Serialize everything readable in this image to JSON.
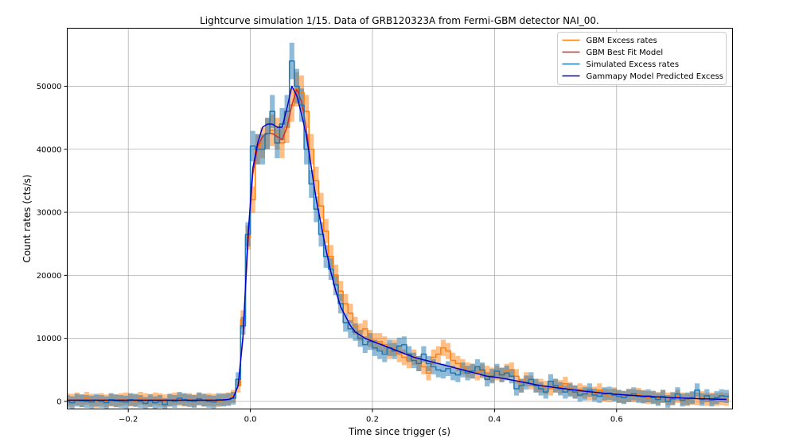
{
  "chart_data": {
    "type": "line",
    "title": "Lightcurve simulation 1/15. Data of GRB120323A from Fermi-GBM detector NAI_00.",
    "xlabel": "Time since trigger (s)",
    "ylabel": "Count rates (cts/s)",
    "xlim": [
      -0.3,
      0.79
    ],
    "ylim": [
      -1200,
      59200
    ],
    "xticks": [
      -0.2,
      0.0,
      0.2,
      0.4,
      0.6
    ],
    "xtick_labels": [
      "−0.2",
      "0.0",
      "0.2",
      "0.4",
      "0.6"
    ],
    "yticks": [
      0,
      10000,
      20000,
      30000,
      40000,
      50000
    ],
    "ytick_labels": [
      "0",
      "10000",
      "20000",
      "30000",
      "40000",
      "50000"
    ],
    "grid": true,
    "legend_position": "top-right",
    "bin_width": 0.008,
    "x": [
      -0.3,
      -0.292,
      -0.284,
      -0.276,
      -0.268,
      -0.26,
      -0.252,
      -0.244,
      -0.236,
      -0.228,
      -0.22,
      -0.212,
      -0.204,
      -0.196,
      -0.188,
      -0.18,
      -0.172,
      -0.164,
      -0.156,
      -0.148,
      -0.14,
      -0.132,
      -0.124,
      -0.116,
      -0.108,
      -0.1,
      -0.092,
      -0.084,
      -0.076,
      -0.068,
      -0.06,
      -0.052,
      -0.044,
      -0.036,
      -0.028,
      -0.02,
      -0.012,
      -0.004,
      0.004,
      0.012,
      0.02,
      0.028,
      0.036,
      0.044,
      0.052,
      0.06,
      0.068,
      0.076,
      0.084,
      0.092,
      0.1,
      0.108,
      0.116,
      0.124,
      0.132,
      0.14,
      0.148,
      0.156,
      0.164,
      0.172,
      0.18,
      0.188,
      0.196,
      0.204,
      0.212,
      0.22,
      0.228,
      0.236,
      0.244,
      0.252,
      0.26,
      0.268,
      0.276,
      0.284,
      0.292,
      0.3,
      0.308,
      0.316,
      0.324,
      0.332,
      0.34,
      0.348,
      0.356,
      0.364,
      0.372,
      0.38,
      0.388,
      0.396,
      0.404,
      0.412,
      0.42,
      0.428,
      0.436,
      0.444,
      0.452,
      0.46,
      0.468,
      0.476,
      0.484,
      0.492,
      0.5,
      0.508,
      0.516,
      0.524,
      0.532,
      0.54,
      0.548,
      0.556,
      0.564,
      0.572,
      0.58,
      0.588,
      0.596,
      0.604,
      0.612,
      0.62,
      0.628,
      0.636,
      0.644,
      0.652,
      0.66,
      0.668,
      0.676,
      0.684,
      0.692,
      0.7,
      0.708,
      0.716,
      0.724,
      0.732,
      0.74,
      0.748,
      0.756,
      0.764,
      0.772,
      0.78
    ],
    "series": [
      {
        "name": "GBM Excess rates",
        "style": "step",
        "color": "#ff7f0e",
        "values": [
          300,
          200,
          400,
          100,
          500,
          200,
          0,
          300,
          100,
          200,
          100,
          300,
          400,
          200,
          100,
          500,
          300,
          200,
          400,
          300,
          100,
          200,
          400,
          300,
          200,
          300,
          100,
          400,
          200,
          300,
          200,
          100,
          300,
          400,
          800,
          2500,
          13000,
          26000,
          32000,
          40000,
          41000,
          42500,
          43000,
          42500,
          41000,
          43500,
          47000,
          49500,
          49000,
          46000,
          40000,
          35000,
          31000,
          27000,
          23000,
          20000,
          17500,
          15500,
          14000,
          12000,
          11000,
          11500,
          10000,
          9500,
          9500,
          9000,
          8000,
          8500,
          7500,
          7000,
          6500,
          7000,
          6000,
          5500,
          4500,
          7000,
          7500,
          8500,
          8000,
          6500,
          6000,
          5500,
          5000,
          4800,
          4500,
          4800,
          4500,
          4200,
          4500,
          4200,
          4800,
          5000,
          4000,
          2500,
          3500,
          3000,
          2500,
          2500,
          2200,
          2000,
          2500,
          2300,
          2800,
          2000,
          1500,
          1800,
          1500,
          1200,
          1300,
          1800,
          1000,
          900,
          1200,
          800,
          700,
          1000,
          900,
          1100,
          800,
          600,
          700,
          500,
          800,
          400,
          500,
          800,
          400,
          300,
          500,
          400,
          600,
          300,
          400,
          300,
          400,
          300
        ]
      },
      {
        "name": "GBM Best Fit Model",
        "style": "line",
        "color": "#d62728",
        "values": [
          200,
          200,
          200,
          200,
          200,
          200,
          200,
          200,
          200,
          200,
          200,
          200,
          200,
          200,
          200,
          200,
          200,
          200,
          200,
          200,
          200,
          200,
          200,
          200,
          200,
          200,
          200,
          200,
          200,
          200,
          200,
          200,
          250,
          300,
          600,
          2500,
          10000,
          25000,
          36000,
          40500,
          42000,
          42500,
          42500,
          42000,
          41500,
          43500,
          47000,
          49500,
          47500,
          43000,
          37000,
          32000,
          28000,
          24000,
          20500,
          17500,
          15000,
          13500,
          12000,
          11000,
          10500,
          10000,
          9700,
          9400,
          9100,
          8800,
          8500,
          8200,
          7900,
          7600,
          7300,
          7000,
          6800,
          6600,
          6400,
          6200,
          6000,
          5800,
          5600,
          5400,
          5200,
          5000,
          4800,
          4600,
          4400,
          4200,
          4000,
          3900,
          3800,
          3700,
          3550,
          3400,
          3250,
          3100,
          2950,
          2800,
          2650,
          2500,
          2400,
          2300,
          2200,
          2100,
          2000,
          1900,
          1800,
          1700,
          1620,
          1540,
          1460,
          1380,
          1300,
          1230,
          1160,
          1100,
          1040,
          990,
          940,
          890,
          840,
          800,
          760,
          720,
          680,
          640,
          600,
          570,
          540,
          510,
          480,
          450,
          420,
          400,
          380,
          360,
          340,
          320
        ]
      },
      {
        "name": "Simulated Excess rates",
        "style": "step",
        "color": "#1f77b4",
        "values": [
          0,
          -200,
          200,
          100,
          0,
          -100,
          200,
          0,
          -200,
          300,
          100,
          0,
          -100,
          300,
          200,
          0,
          -300,
          100,
          -200,
          0,
          -500,
          200,
          0,
          500,
          300,
          100,
          0,
          400,
          200,
          0,
          -100,
          300,
          200,
          300,
          500,
          3500,
          12000,
          26500,
          40500,
          40000,
          40000,
          42500,
          46000,
          41000,
          44000,
          46000,
          54000,
          50000,
          47000,
          40000,
          34500,
          30500,
          26500,
          23000,
          21000,
          18500,
          15500,
          12500,
          11500,
          11000,
          10000,
          9000,
          9500,
          8500,
          8000,
          7500,
          8500,
          8000,
          8800,
          9000,
          7500,
          6500,
          6000,
          7500,
          6000,
          5500,
          5000,
          4800,
          5200,
          4500,
          4200,
          5000,
          4500,
          4800,
          5500,
          5000,
          3500,
          4000,
          4800,
          4200,
          4500,
          4000,
          2000,
          2500,
          3000,
          3500,
          2500,
          2000,
          1500,
          3200,
          2500,
          2000,
          1500,
          1800,
          1500,
          1000,
          1200,
          1800,
          1000,
          800,
          1200,
          1300,
          1000,
          800,
          600,
          900,
          1200,
          800,
          700,
          900,
          600,
          300,
          800,
          0,
          400,
          1200,
          200,
          400,
          600,
          1800,
          300,
          900,
          200,
          600,
          900,
          800
        ]
      },
      {
        "name": "Gammapy Model Predicted Excess",
        "style": "line",
        "color": "#0000cd",
        "values": [
          200,
          200,
          200,
          200,
          200,
          200,
          200,
          200,
          200,
          200,
          200,
          200,
          200,
          200,
          200,
          200,
          200,
          200,
          200,
          200,
          200,
          200,
          200,
          200,
          200,
          200,
          200,
          200,
          200,
          200,
          200,
          200,
          250,
          300,
          600,
          2500,
          10500,
          26000,
          37000,
          41000,
          43500,
          44000,
          44000,
          43500,
          43500,
          46500,
          50000,
          48500,
          45500,
          42000,
          37000,
          32000,
          28000,
          24000,
          20500,
          17500,
          15000,
          13500,
          12000,
          11000,
          10500,
          10000,
          9700,
          9400,
          9100,
          8800,
          8500,
          8200,
          7900,
          7600,
          7300,
          7000,
          6800,
          6600,
          6400,
          6200,
          6000,
          5800,
          5600,
          5400,
          5200,
          5000,
          4800,
          4600,
          4400,
          4200,
          4000,
          3900,
          3800,
          3700,
          3550,
          3400,
          3250,
          3100,
          2950,
          2800,
          2650,
          2500,
          2400,
          2300,
          2200,
          2100,
          2000,
          1900,
          1800,
          1700,
          1620,
          1540,
          1460,
          1380,
          1300,
          1230,
          1160,
          1100,
          1040,
          990,
          940,
          890,
          840,
          800,
          760,
          720,
          680,
          640,
          600,
          570,
          540,
          510,
          480,
          450,
          420,
          400,
          380,
          360,
          340,
          320
        ]
      }
    ]
  }
}
